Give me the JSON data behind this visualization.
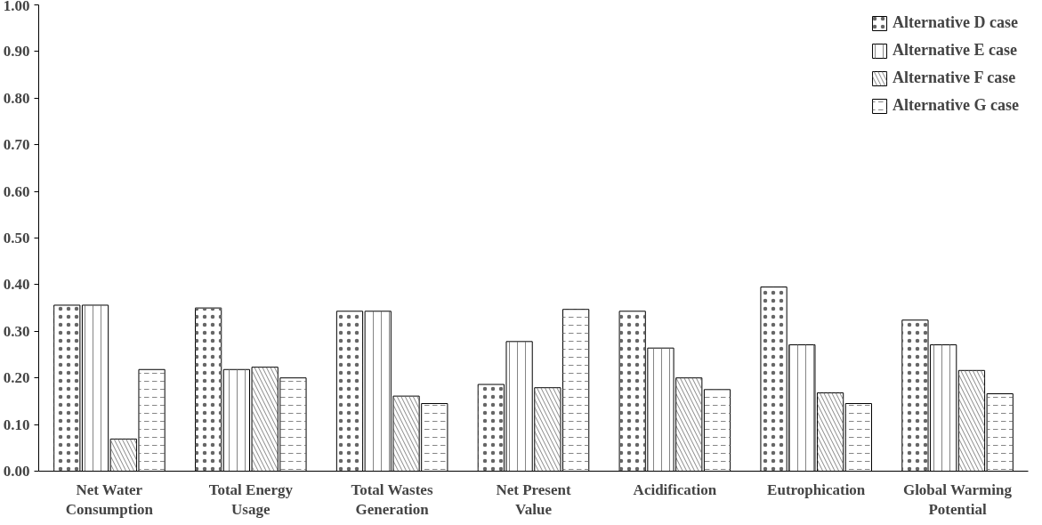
{
  "chart_data": {
    "type": "bar",
    "categories": [
      "Net Water Consumption",
      "Total Energy Usage",
      "Total Wastes Generation",
      "Net Present Value",
      "Acidification",
      "Eutrophication",
      "Global Warming Potential"
    ],
    "series": [
      {
        "name": "Alternative D case",
        "color": "#ffffff",
        "values": [
          0.356,
          0.35,
          0.343,
          0.186,
          0.343,
          0.395,
          0.324
        ]
      },
      {
        "name": "Alternative E case",
        "color": "#ffffff",
        "values": [
          0.356,
          0.218,
          0.343,
          0.278,
          0.264,
          0.271,
          0.271
        ]
      },
      {
        "name": "Alternative F case",
        "color": "#ffffff",
        "values": [
          0.069,
          0.223,
          0.161,
          0.179,
          0.2,
          0.168,
          0.216
        ]
      },
      {
        "name": "Alternative G case",
        "color": "#ffffff",
        "values": [
          0.218,
          0.2,
          0.145,
          0.347,
          0.175,
          0.145,
          0.166
        ]
      }
    ],
    "ylim": [
      0,
      1
    ],
    "yticks": [
      {
        "value": 0,
        "label": "0.00"
      },
      {
        "value": 0.1,
        "label": "0.10"
      },
      {
        "value": 0.2,
        "label": "0.20"
      },
      {
        "value": 0.3,
        "label": "0.30"
      },
      {
        "value": 0.4,
        "label": "0.40"
      },
      {
        "value": 0.5,
        "label": "0.50"
      },
      {
        "value": 0.6,
        "label": "0.60"
      },
      {
        "value": 0.7,
        "label": "0.70"
      },
      {
        "value": 0.8,
        "label": "0.80"
      },
      {
        "value": 0.9,
        "label": "0.90"
      },
      {
        "value": 1,
        "label": "1.00"
      }
    ],
    "grid": false,
    "legend": "top right"
  }
}
